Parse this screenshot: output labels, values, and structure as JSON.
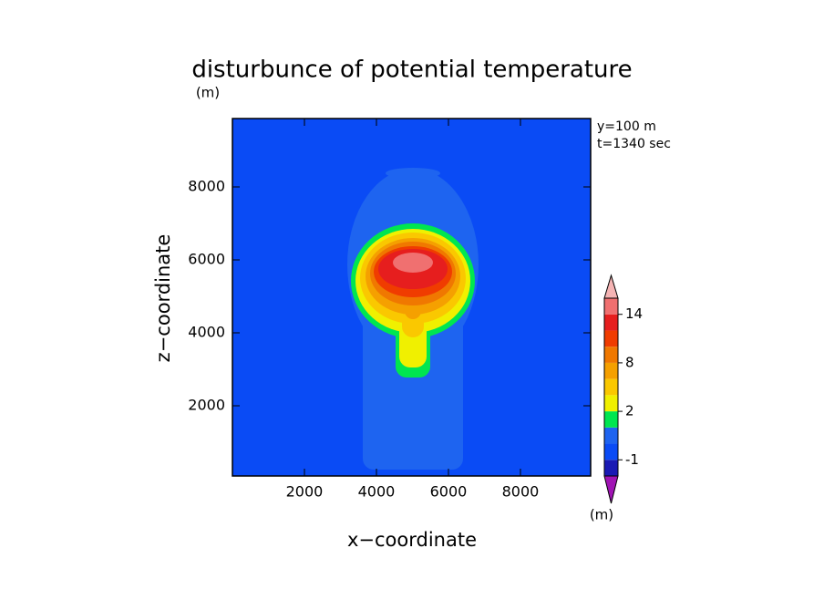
{
  "chart_data": {
    "type": "contour",
    "title": "disturbunce of potential temperature",
    "y_unit": "(m)",
    "annotations": [
      "y=100 m",
      "t=1340 sec"
    ],
    "x_label": "x−coordinate",
    "y_label": "z−coordinate",
    "xlim": [
      0,
      9950
    ],
    "xticks": [
      2000,
      4000,
      6000,
      8000
    ],
    "ylim": [
      75,
      9875
    ],
    "yticks": [
      2000,
      4000,
      6000,
      8000
    ],
    "colorbar": {
      "unit": "(m)",
      "levels": [
        -2,
        -1,
        0,
        1,
        2,
        4,
        6,
        8,
        10,
        12,
        14,
        16
      ],
      "colors": [
        "#1a1ab4",
        "#0a4bf5",
        "#1e64f0",
        "#00e650",
        "#f0f000",
        "#fac800",
        "#f5a000",
        "#f07800",
        "#f03c00",
        "#e61e1e",
        "#f07070"
      ],
      "under_color": "#a014b4",
      "over_color": "#f5b4b4",
      "ticks": [
        -1,
        2,
        8,
        14
      ]
    }
  }
}
